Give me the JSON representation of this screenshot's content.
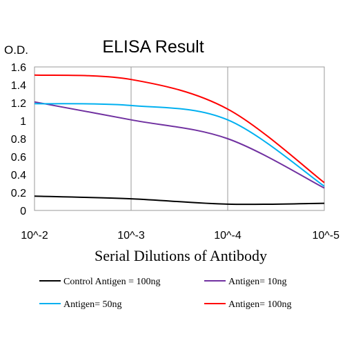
{
  "chart_data": {
    "type": "line",
    "title": "ELISA Result",
    "ylabel": "O.D.",
    "xlabel": "Serial Dilutions of Antibody",
    "x": [
      "10^-2",
      "10^-3",
      "10^-4",
      "10^-5"
    ],
    "x_tick_labels": [
      "10^-2",
      "10^-3",
      "10^-4",
      "10^-5"
    ],
    "ylim": [
      0,
      1.6
    ],
    "y_ticks": [
      0,
      0.2,
      0.4,
      0.6,
      0.8,
      1,
      1.2,
      1.4,
      1.6
    ],
    "y_tick_labels": [
      "0",
      "0.2",
      "0.4",
      "0.6",
      "0.8",
      "1",
      "1.2",
      "1.4",
      "1.6"
    ],
    "grid": "vertical",
    "legend_position": "bottom",
    "series": [
      {
        "name": "Control Antigen = 100ng",
        "color": "#000000",
        "values": [
          0.16,
          0.13,
          0.07,
          0.08
        ]
      },
      {
        "name": "Antigen= 10ng",
        "color": "#7030a0",
        "values": [
          1.21,
          1.01,
          0.8,
          0.25
        ]
      },
      {
        "name": "Antigen= 50ng",
        "color": "#00b0f0",
        "values": [
          1.19,
          1.17,
          1.01,
          0.27
        ]
      },
      {
        "name": "Antigen= 100ng",
        "color": "#ff0000",
        "values": [
          1.51,
          1.46,
          1.13,
          0.31
        ]
      }
    ]
  }
}
